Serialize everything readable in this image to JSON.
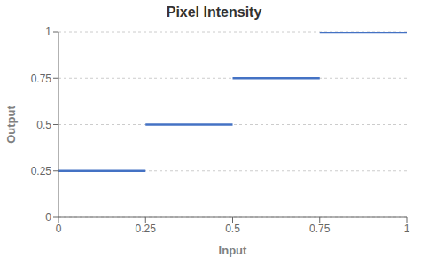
{
  "chart_data": {
    "type": "step",
    "title": "Pixel Intensity",
    "x_label": "Input",
    "y_label": "Output",
    "bins": [
      0,
      0.25,
      0.5,
      0.75,
      1.0
    ],
    "values": [
      0.25,
      0.5,
      0.75,
      1.0
    ],
    "color": "#4472C4",
    "xlim": [
      0,
      1
    ],
    "ylim": [
      0,
      1
    ],
    "xticks": [
      0,
      0.25,
      0.5,
      0.75,
      1
    ],
    "yticks": [
      0,
      0.25,
      0.5,
      0.75,
      1
    ],
    "grid": "y"
  }
}
